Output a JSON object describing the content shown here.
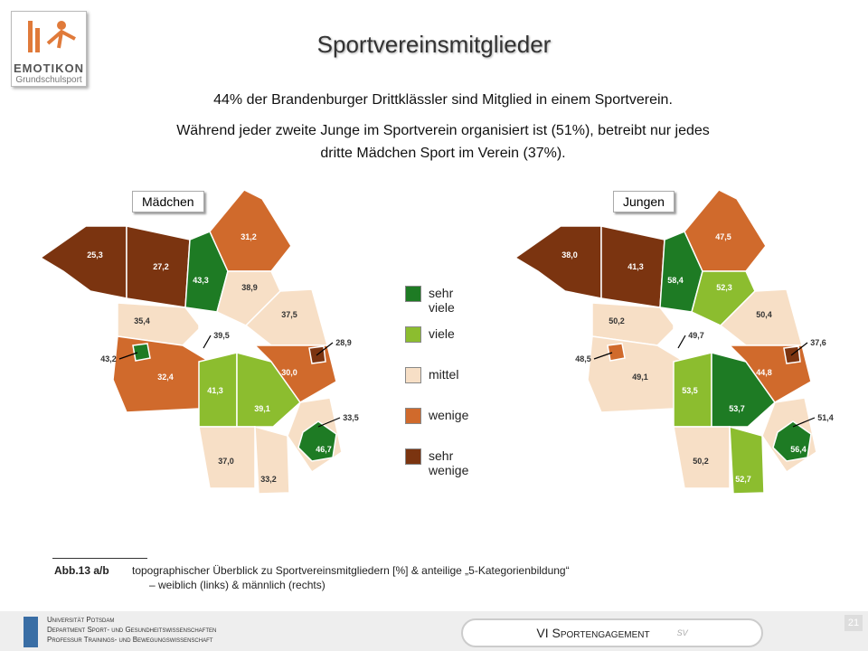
{
  "header": {
    "logo_title": "EMOTIKON",
    "logo_subtitle": "Grundschulsport",
    "title": "Sportvereinsmitglieder",
    "lines": [
      "44% der Brandenburger Drittklässler sind Mitglied in einem Sportverein.",
      "Während jeder zweite Junge im Sportverein organisiert ist (51%), betreibt nur jedes",
      "dritte Mädchen Sport im Verein (37%)."
    ]
  },
  "legend": [
    {
      "label": "sehr viele",
      "color": "#1e7b24"
    },
    {
      "label": "viele",
      "color": "#8cbd2f"
    },
    {
      "label": "mittel",
      "color": "#f7dfc6"
    },
    {
      "label": "wenige",
      "color": "#d06a2c"
    },
    {
      "label": "sehr wenige",
      "color": "#7b3410"
    }
  ],
  "maps": [
    {
      "title": "Mädchen",
      "regions": [
        {
          "label": "25,3",
          "category": "sehr wenige"
        },
        {
          "label": "27,2",
          "category": "sehr wenige"
        },
        {
          "label": "43,3",
          "category": "sehr viele"
        },
        {
          "label": "31,2",
          "category": "wenige"
        },
        {
          "label": "38,9",
          "category": "mittel"
        },
        {
          "label": "37,5",
          "category": "mittel"
        },
        {
          "label": "35,4",
          "category": "mittel"
        },
        {
          "label": "39,5"
        },
        {
          "label": "43,2",
          "category": "sehr viele"
        },
        {
          "label": "32,4",
          "category": "wenige"
        },
        {
          "label": "41,3",
          "category": "viele"
        },
        {
          "label": "39,1",
          "category": "viele"
        },
        {
          "label": "30,0",
          "category": "wenige"
        },
        {
          "label": "28,9",
          "category": "sehr wenige"
        },
        {
          "label": "33,5",
          "category": "mittel"
        },
        {
          "label": "46,7",
          "category": "sehr viele"
        },
        {
          "label": "37,0",
          "category": "mittel"
        },
        {
          "label": "33,2",
          "category": "mittel"
        }
      ]
    },
    {
      "title": "Jungen",
      "regions": [
        {
          "label": "38,0",
          "category": "sehr wenige"
        },
        {
          "label": "41,3",
          "category": "sehr wenige"
        },
        {
          "label": "58,4",
          "category": "sehr viele"
        },
        {
          "label": "47,5",
          "category": "wenige"
        },
        {
          "label": "52,3",
          "category": "viele"
        },
        {
          "label": "50,4",
          "category": "mittel"
        },
        {
          "label": "50,2",
          "category": "mittel"
        },
        {
          "label": "49,7"
        },
        {
          "label": "48,5",
          "category": "wenige"
        },
        {
          "label": "49,1",
          "category": "mittel"
        },
        {
          "label": "53,5",
          "category": "viele"
        },
        {
          "label": "53,7",
          "category": "sehr viele"
        },
        {
          "label": "44,8",
          "category": "wenige"
        },
        {
          "label": "37,6",
          "category": "sehr wenige"
        },
        {
          "label": "51,4",
          "category": "mittel"
        },
        {
          "label": "56,4",
          "category": "sehr viele"
        },
        {
          "label": "50,2",
          "category": "mittel"
        },
        {
          "label": "52,7",
          "category": "viele"
        }
      ]
    }
  ],
  "caption": {
    "label": "Abb.13 a/b",
    "text": "topographischer Überblick zu Sportvereinsmitgliedern [%] & anteilige „5-Kategorienbildung“",
    "text2": "– weiblich (links) & männlich (rechts)"
  },
  "footer": {
    "lines": [
      "Universität Potsdam",
      "Department Sport- und Gesundheitswissenschaften",
      "Professur Trainings- und Bewegungswissenschaft"
    ],
    "section": "VI Sportengagement",
    "tag": "SV",
    "page": "21"
  }
}
